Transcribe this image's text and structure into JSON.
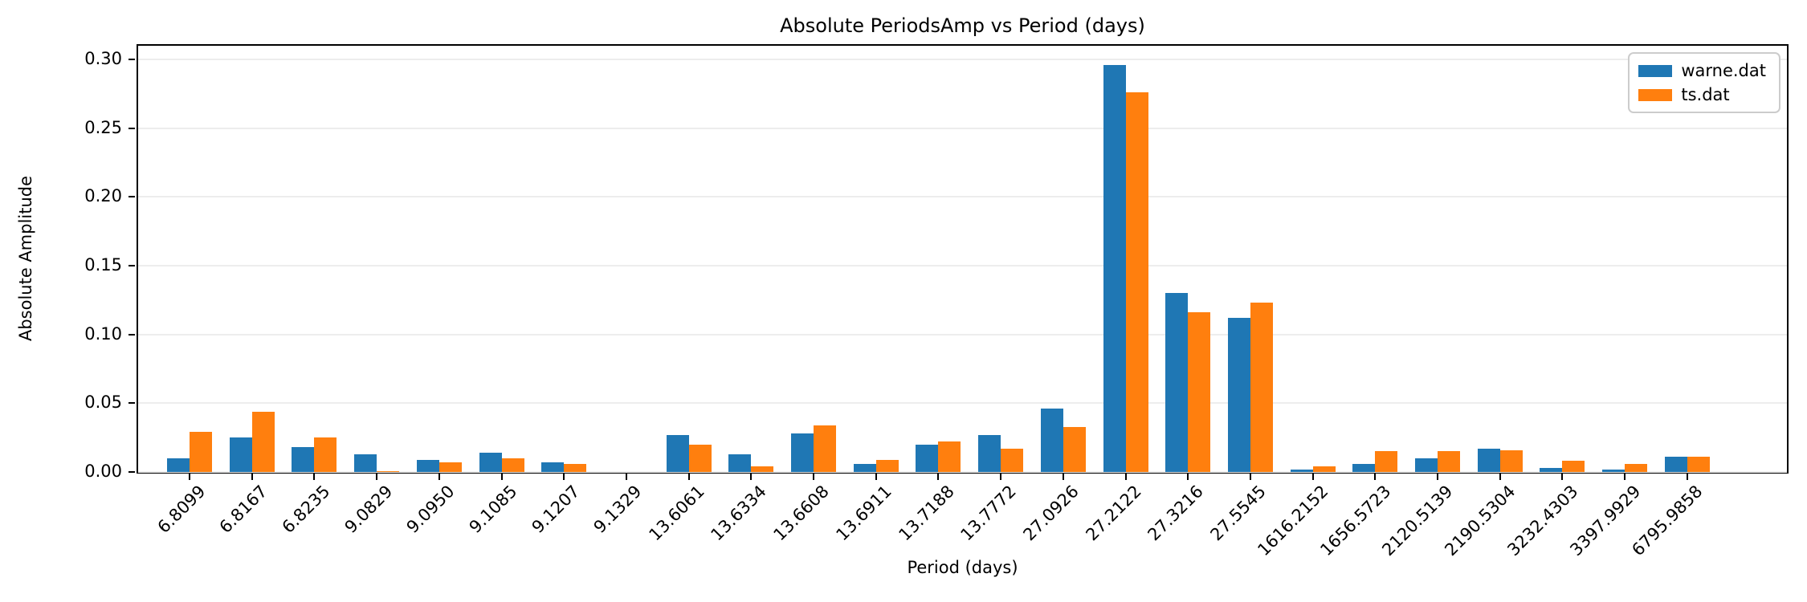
{
  "chart_data": {
    "type": "bar",
    "title": "Absolute PeriodsAmp vs Period (days)",
    "xlabel": "Period (days)",
    "ylabel": "Absolute Amplitude",
    "categories": [
      "6.8099",
      "6.8167",
      "6.8235",
      "9.0829",
      "9.0950",
      "9.1085",
      "9.1207",
      "9.1329",
      "13.6061",
      "13.6334",
      "13.6608",
      "13.6911",
      "13.7188",
      "13.7772",
      "27.0926",
      "27.2122",
      "27.3216",
      "27.5545",
      "1616.2152",
      "1656.5723",
      "2120.5139",
      "2190.5304",
      "3232.4303",
      "3397.9929",
      "6795.9858"
    ],
    "series": [
      {
        "name": "warne.dat",
        "color": "#1f77b4",
        "values": [
          0.01,
          0.025,
          0.018,
          0.013,
          0.009,
          0.014,
          0.007,
          0.0,
          0.027,
          0.013,
          0.028,
          0.006,
          0.02,
          0.027,
          0.046,
          0.296,
          0.13,
          0.112,
          0.002,
          0.006,
          0.01,
          0.017,
          0.003,
          0.002,
          0.011
        ]
      },
      {
        "name": "ts.dat",
        "color": "#ff7f0e",
        "values": [
          0.029,
          0.044,
          0.025,
          0.0005,
          0.007,
          0.01,
          0.006,
          0.0,
          0.02,
          0.004,
          0.034,
          0.009,
          0.022,
          0.017,
          0.033,
          0.276,
          0.116,
          0.123,
          0.004,
          0.015,
          0.015,
          0.016,
          0.008,
          0.006,
          0.011
        ]
      }
    ],
    "ylim": [
      0,
      0.31
    ],
    "yticks": [
      0.0,
      0.05,
      0.1,
      0.15,
      0.2,
      0.25,
      0.3
    ],
    "ytick_labels": [
      "0.00",
      "0.05",
      "0.10",
      "0.15",
      "0.20",
      "0.25",
      "0.30"
    ],
    "xtick_rotation_deg": 45,
    "grid": "horizontal",
    "legend_position": "upper right"
  }
}
